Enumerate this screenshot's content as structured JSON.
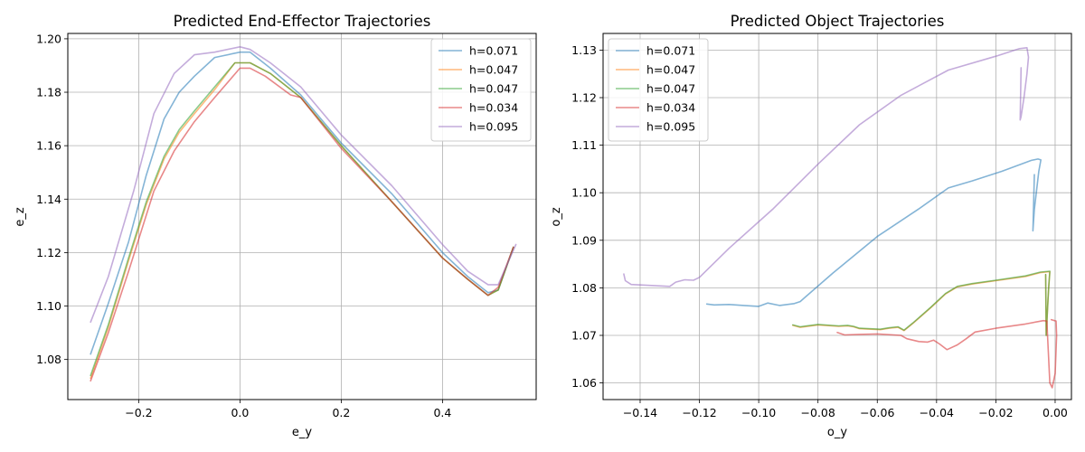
{
  "chart_data": [
    {
      "type": "line",
      "title": "Predicted End-Effector Trajectories",
      "xlabel": "e_y",
      "ylabel": "e_z",
      "xlim": [
        -0.34,
        0.585
      ],
      "ylim": [
        1.065,
        1.202
      ],
      "xticks": [
        -0.2,
        0.0,
        0.2,
        0.4
      ],
      "yticks": [
        1.08,
        1.1,
        1.12,
        1.14,
        1.16,
        1.18,
        1.2
      ],
      "xtick_labels": [
        "−0.2",
        "0.0",
        "0.2",
        "0.4"
      ],
      "ytick_labels": [
        "1.08",
        "1.10",
        "1.12",
        "1.14",
        "1.16",
        "1.18",
        "1.20"
      ],
      "grid": true,
      "legend_position": "top-right",
      "series": [
        {
          "name": "h=0.071",
          "color": "#1f77b4",
          "x": [
            -0.295,
            -0.26,
            -0.22,
            -0.185,
            -0.15,
            -0.12,
            -0.09,
            -0.05,
            0.0,
            0.02,
            0.06,
            0.12,
            0.2,
            0.3,
            0.4,
            0.45,
            0.49,
            0.51,
            0.54
          ],
          "y": [
            1.082,
            1.101,
            1.124,
            1.149,
            1.17,
            1.18,
            1.186,
            1.193,
            1.195,
            1.195,
            1.189,
            1.179,
            1.161,
            1.142,
            1.12,
            1.111,
            1.105,
            1.106,
            1.122
          ]
        },
        {
          "name": "h=0.047",
          "color": "#ff7f0e",
          "x": [
            -0.295,
            -0.26,
            -0.22,
            -0.185,
            -0.15,
            -0.12,
            -0.09,
            -0.05,
            -0.01,
            0.02,
            0.06,
            0.12,
            0.2,
            0.3,
            0.4,
            0.45,
            0.49,
            0.51,
            0.54
          ],
          "y": [
            1.073,
            1.092,
            1.117,
            1.138,
            1.155,
            1.165,
            1.172,
            1.181,
            1.191,
            1.191,
            1.187,
            1.178,
            1.16,
            1.139,
            1.118,
            1.11,
            1.104,
            1.106,
            1.122
          ]
        },
        {
          "name": "h=0.047",
          "color": "#2ca02c",
          "x": [
            -0.295,
            -0.26,
            -0.22,
            -0.185,
            -0.15,
            -0.12,
            -0.09,
            -0.05,
            -0.01,
            0.02,
            0.06,
            0.12,
            0.2,
            0.3,
            0.4,
            0.45,
            0.49,
            0.51,
            0.54
          ],
          "y": [
            1.074,
            1.093,
            1.118,
            1.139,
            1.156,
            1.166,
            1.173,
            1.182,
            1.191,
            1.191,
            1.187,
            1.178,
            1.16,
            1.139,
            1.118,
            1.11,
            1.104,
            1.106,
            1.122
          ]
        },
        {
          "name": "h=0.034",
          "color": "#d62728",
          "x": [
            -0.295,
            -0.26,
            -0.22,
            -0.17,
            -0.13,
            -0.09,
            -0.05,
            0.0,
            0.02,
            0.05,
            0.1,
            0.12,
            0.2,
            0.3,
            0.4,
            0.45,
            0.49,
            0.51,
            0.54
          ],
          "y": [
            1.072,
            1.09,
            1.113,
            1.143,
            1.158,
            1.169,
            1.178,
            1.189,
            1.189,
            1.186,
            1.179,
            1.178,
            1.159,
            1.139,
            1.118,
            1.11,
            1.104,
            1.107,
            1.122
          ]
        },
        {
          "name": "h=0.095",
          "color": "#9467bd",
          "x": [
            -0.295,
            -0.26,
            -0.21,
            -0.17,
            -0.13,
            -0.09,
            -0.05,
            0.0,
            0.02,
            0.06,
            0.12,
            0.2,
            0.3,
            0.4,
            0.45,
            0.49,
            0.51,
            0.545
          ],
          "y": [
            1.094,
            1.111,
            1.143,
            1.172,
            1.187,
            1.194,
            1.195,
            1.197,
            1.196,
            1.191,
            1.182,
            1.164,
            1.145,
            1.123,
            1.113,
            1.108,
            1.108,
            1.123
          ]
        }
      ]
    },
    {
      "type": "line",
      "title": "Predicted Object Trajectories",
      "xlabel": "o_y",
      "ylabel": "o_z",
      "xlim": [
        -0.1525,
        0.0055
      ],
      "ylim": [
        1.0565,
        1.1335
      ],
      "xticks": [
        -0.14,
        -0.12,
        -0.1,
        -0.08,
        -0.06,
        -0.04,
        -0.02,
        0.0
      ],
      "yticks": [
        1.06,
        1.07,
        1.08,
        1.09,
        1.1,
        1.11,
        1.12,
        1.13
      ],
      "xtick_labels": [
        "−0.14",
        "−0.12",
        "−0.10",
        "−0.08",
        "−0.06",
        "−0.04",
        "−0.02",
        "0.00"
      ],
      "ytick_labels": [
        "1.06",
        "1.07",
        "1.08",
        "1.09",
        "1.10",
        "1.11",
        "1.12",
        "1.13"
      ],
      "grid": true,
      "legend_position": "top-left",
      "series": [
        {
          "name": "h=0.071",
          "color": "#1f77b4",
          "x": [
            -0.1175,
            -0.115,
            -0.11,
            -0.105,
            -0.1,
            -0.097,
            -0.093,
            -0.088,
            -0.086,
            -0.075,
            -0.06,
            -0.046,
            -0.036,
            -0.028,
            -0.018,
            -0.008,
            -0.0058,
            -0.0048,
            -0.0055,
            -0.007,
            -0.0075,
            -0.007
          ],
          "y": [
            1.0766,
            1.0764,
            1.0765,
            1.0763,
            1.0761,
            1.0768,
            1.0763,
            1.0767,
            1.0771,
            1.0831,
            1.0908,
            1.0966,
            1.101,
            1.1025,
            1.1045,
            1.1068,
            1.1071,
            1.1069,
            1.1045,
            1.0965,
            1.092,
            1.1038
          ]
        },
        {
          "name": "h=0.047",
          "color": "#ff7f0e",
          "x": [
            -0.0885,
            -0.086,
            -0.08,
            -0.073,
            -0.07,
            -0.068,
            -0.066,
            -0.059,
            -0.056,
            -0.053,
            -0.051,
            -0.048,
            -0.042,
            -0.037,
            -0.033,
            -0.028,
            -0.02,
            -0.01,
            -0.005,
            -0.0018,
            -0.0022,
            -0.0025,
            -0.003,
            -0.0032
          ],
          "y": [
            1.0721,
            1.0717,
            1.0722,
            1.0719,
            1.072,
            1.0718,
            1.0714,
            1.0712,
            1.0715,
            1.0717,
            1.071,
            1.0725,
            1.0758,
            1.0787,
            1.0802,
            1.0808,
            1.0815,
            1.0824,
            1.0832,
            1.0834,
            1.08,
            1.0765,
            1.07,
            1.0828
          ]
        },
        {
          "name": "h=0.047",
          "color": "#2ca02c",
          "x": [
            -0.0885,
            -0.086,
            -0.08,
            -0.073,
            -0.07,
            -0.068,
            -0.066,
            -0.059,
            -0.056,
            -0.053,
            -0.051,
            -0.048,
            -0.042,
            -0.037,
            -0.033,
            -0.028,
            -0.02,
            -0.01,
            -0.005,
            -0.0018,
            -0.0022,
            -0.0025,
            -0.003,
            -0.0032
          ],
          "y": [
            1.0722,
            1.0718,
            1.0723,
            1.072,
            1.0721,
            1.0719,
            1.0715,
            1.0713,
            1.0716,
            1.0718,
            1.0711,
            1.0726,
            1.0759,
            1.0788,
            1.0803,
            1.0809,
            1.0816,
            1.0825,
            1.0833,
            1.0835,
            1.08,
            1.0765,
            1.07,
            1.0828
          ]
        },
        {
          "name": "h=0.034",
          "color": "#d62728",
          "x": [
            -0.0735,
            -0.071,
            -0.066,
            -0.06,
            -0.052,
            -0.05,
            -0.046,
            -0.043,
            -0.041,
            -0.039,
            -0.0365,
            -0.033,
            -0.03,
            -0.027,
            -0.02,
            -0.01,
            -0.004,
            -0.0028,
            -0.0018,
            -0.001,
            0.0,
            0.0005,
            0.0003,
            -0.0013
          ],
          "y": [
            1.0706,
            1.0701,
            1.0702,
            1.0703,
            1.07,
            1.0693,
            1.0687,
            1.0686,
            1.069,
            1.0682,
            1.067,
            1.068,
            1.0693,
            1.0707,
            1.0715,
            1.0724,
            1.0731,
            1.073,
            1.06,
            1.059,
            1.062,
            1.07,
            1.073,
            1.0733
          ]
        },
        {
          "name": "h=0.095",
          "color": "#9467bd",
          "x": [
            -0.1455,
            -0.145,
            -0.143,
            -0.13,
            -0.128,
            -0.125,
            -0.122,
            -0.12,
            -0.11,
            -0.095,
            -0.08,
            -0.066,
            -0.052,
            -0.036,
            -0.02,
            -0.012,
            -0.0095,
            -0.009,
            -0.0095,
            -0.0105,
            -0.0115,
            -0.0118,
            -0.0115
          ],
          "y": [
            1.0829,
            1.0815,
            1.0807,
            1.0803,
            1.0812,
            1.0817,
            1.0816,
            1.0822,
            1.0883,
            1.0967,
            1.106,
            1.1143,
            1.1205,
            1.1258,
            1.1287,
            1.1303,
            1.1305,
            1.1285,
            1.125,
            1.12,
            1.116,
            1.1153,
            1.1263
          ]
        }
      ]
    }
  ]
}
